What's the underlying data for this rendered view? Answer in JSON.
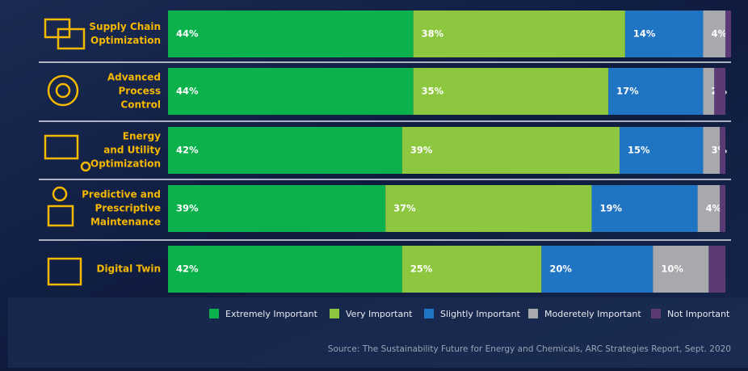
{
  "chart_data": {
    "type": "stacked-bar-horizontal",
    "categories": [
      [
        "Supply Chain",
        "Optimization"
      ],
      [
        "Advanced",
        "Process",
        "Control"
      ],
      [
        "Energy",
        "and Utility",
        "Optimization"
      ],
      [
        "Predictive and",
        "Prescriptive",
        "Maintenance"
      ],
      [
        "Digital Twin"
      ]
    ],
    "series": [
      {
        "name": "Extremely Important",
        "color": "#0bb14b",
        "values": [
          44,
          44,
          42,
          39,
          42
        ],
        "value_labels": [
          "44%",
          "44%",
          "42%",
          "39%",
          "42%"
        ]
      },
      {
        "name": "Very Important",
        "color": "#8dc63f",
        "values": [
          38,
          35,
          39,
          37,
          25
        ],
        "value_labels": [
          "38%",
          "35%",
          "39%",
          "37%",
          "25%"
        ]
      },
      {
        "name": "Slightly Important",
        "color": "#1f74c4",
        "values": [
          14,
          17,
          15,
          19,
          20
        ],
        "value_labels": [
          "14%",
          "17%",
          "15%",
          "19%",
          "20%"
        ]
      },
      {
        "name": "Moderetely Important",
        "color": "#a7a9ac",
        "values": [
          4,
          2,
          3,
          4,
          10
        ],
        "value_labels": [
          "4%",
          "2%",
          "3%",
          "4%",
          "10%"
        ]
      },
      {
        "name": "Not Important",
        "color": "#5b3a75",
        "values": [
          1,
          2,
          1,
          1,
          3
        ]
      }
    ],
    "xlim": [
      0,
      101
    ],
    "source": "Source: The Sustainability Future for Energy and Chemicals, ARC Strategies Report, Sept. 2020"
  }
}
